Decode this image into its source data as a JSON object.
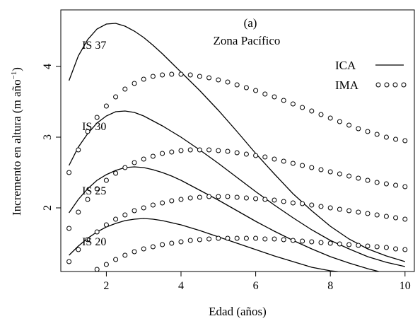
{
  "chart_data": {
    "type": "line",
    "panel_label": "(a)",
    "title": "Zona Pacífico",
    "xlabel": "Edad (años)",
    "ylabel": "Incremento en altura (m año",
    "ylabel_sup": "−1",
    "ylabel_close": ")",
    "xlim": [
      0.78,
      10.25
    ],
    "ylim": [
      1.1,
      4.8
    ],
    "x_ticks": [
      2,
      4,
      6,
      8,
      10
    ],
    "y_ticks": [
      2,
      3,
      4
    ],
    "grid": false,
    "legend_position": "top-right",
    "legend": [
      {
        "label": "ICA",
        "style": "solid"
      },
      {
        "label": "IMA",
        "style": "circles"
      }
    ],
    "series": [
      {
        "name": "IS 37",
        "group": "ICA",
        "style": "solid",
        "x": [
          1.0,
          1.25,
          1.5,
          1.75,
          2.0,
          2.25,
          2.5,
          2.75,
          3.0,
          3.25,
          3.5,
          3.75,
          4.0,
          4.5,
          5.0,
          5.5,
          6.0,
          6.5,
          7.0,
          7.5,
          8.0,
          8.5,
          9.0,
          9.5,
          10.0
        ],
        "y": [
          3.8,
          4.15,
          4.38,
          4.53,
          4.6,
          4.61,
          4.57,
          4.5,
          4.41,
          4.3,
          4.18,
          4.05,
          3.92,
          3.66,
          3.38,
          3.08,
          2.77,
          2.48,
          2.2,
          1.96,
          1.74,
          1.56,
          1.42,
          1.32,
          1.24
        ]
      },
      {
        "name": "IS 30",
        "group": "ICA",
        "style": "solid",
        "x": [
          1.0,
          1.25,
          1.5,
          1.75,
          2.0,
          2.25,
          2.5,
          2.75,
          3.0,
          3.25,
          3.5,
          3.75,
          4.0,
          4.5,
          5.0,
          5.5,
          6.0,
          6.5,
          7.0,
          7.5,
          8.0,
          8.5,
          9.0,
          9.5,
          10.0
        ],
        "y": [
          2.6,
          2.86,
          3.05,
          3.2,
          3.3,
          3.36,
          3.37,
          3.35,
          3.3,
          3.23,
          3.16,
          3.08,
          3.0,
          2.82,
          2.63,
          2.43,
          2.23,
          2.04,
          1.86,
          1.69,
          1.54,
          1.42,
          1.31,
          1.23,
          1.17
        ]
      },
      {
        "name": "IS 25",
        "group": "ICA",
        "style": "solid",
        "x": [
          1.0,
          1.25,
          1.5,
          1.75,
          2.0,
          2.25,
          2.5,
          2.75,
          3.0,
          3.25,
          3.5,
          3.75,
          4.0,
          4.5,
          5.0,
          5.5,
          6.0,
          6.5,
          7.0,
          7.5,
          8.0,
          8.5,
          9.0,
          9.3
        ],
        "y": [
          1.93,
          2.12,
          2.27,
          2.39,
          2.47,
          2.53,
          2.57,
          2.58,
          2.57,
          2.54,
          2.5,
          2.45,
          2.39,
          2.25,
          2.11,
          1.96,
          1.81,
          1.67,
          1.54,
          1.42,
          1.31,
          1.22,
          1.14,
          1.1
        ]
      },
      {
        "name": "IS 20",
        "group": "ICA",
        "style": "solid",
        "x": [
          1.0,
          1.25,
          1.5,
          1.75,
          2.0,
          2.25,
          2.5,
          2.75,
          3.0,
          3.25,
          3.5,
          3.75,
          4.0,
          4.5,
          5.0,
          5.5,
          6.0,
          6.5,
          7.0,
          7.5,
          8.0,
          8.2
        ],
        "y": [
          1.33,
          1.46,
          1.57,
          1.66,
          1.73,
          1.78,
          1.82,
          1.84,
          1.85,
          1.84,
          1.82,
          1.79,
          1.76,
          1.68,
          1.59,
          1.5,
          1.41,
          1.32,
          1.24,
          1.16,
          1.11,
          1.1
        ]
      },
      {
        "name": "",
        "group": "IMA",
        "style": "circles",
        "x": [
          1.0,
          1.25,
          1.5,
          1.75,
          2.0,
          2.25,
          2.5,
          2.75,
          3.0,
          3.25,
          3.5,
          3.75,
          4.0,
          4.25,
          4.5,
          4.75,
          5.0,
          5.25,
          5.5,
          5.75,
          6.0,
          6.25,
          6.5,
          6.75,
          7.0,
          7.25,
          7.5,
          7.75,
          8.0,
          8.25,
          8.5,
          8.75,
          9.0,
          9.25,
          9.5,
          9.75,
          10.0
        ],
        "y": [
          2.5,
          2.82,
          3.08,
          3.28,
          3.44,
          3.57,
          3.68,
          3.76,
          3.82,
          3.86,
          3.88,
          3.89,
          3.89,
          3.88,
          3.86,
          3.84,
          3.81,
          3.78,
          3.74,
          3.7,
          3.66,
          3.61,
          3.57,
          3.52,
          3.47,
          3.42,
          3.37,
          3.32,
          3.27,
          3.22,
          3.17,
          3.12,
          3.08,
          3.04,
          3.0,
          2.97,
          2.95
        ]
      },
      {
        "name": "",
        "group": "IMA",
        "style": "circles",
        "x": [
          1.0,
          1.25,
          1.5,
          1.75,
          2.0,
          2.25,
          2.5,
          2.75,
          3.0,
          3.25,
          3.5,
          3.75,
          4.0,
          4.25,
          4.5,
          4.75,
          5.0,
          5.25,
          5.5,
          5.75,
          6.0,
          6.25,
          6.5,
          6.75,
          7.0,
          7.25,
          7.5,
          7.75,
          8.0,
          8.25,
          8.5,
          8.75,
          9.0,
          9.25,
          9.5,
          9.75,
          10.0
        ],
        "y": [
          1.71,
          1.94,
          2.12,
          2.27,
          2.39,
          2.49,
          2.57,
          2.64,
          2.69,
          2.73,
          2.77,
          2.79,
          2.81,
          2.82,
          2.82,
          2.82,
          2.81,
          2.8,
          2.78,
          2.76,
          2.74,
          2.72,
          2.69,
          2.66,
          2.63,
          2.6,
          2.57,
          2.54,
          2.51,
          2.48,
          2.45,
          2.42,
          2.39,
          2.36,
          2.34,
          2.32,
          2.3
        ]
      },
      {
        "name": "",
        "group": "IMA",
        "style": "circles",
        "x": [
          1.0,
          1.25,
          1.5,
          1.75,
          2.0,
          2.25,
          2.5,
          2.75,
          3.0,
          3.25,
          3.5,
          3.75,
          4.0,
          4.25,
          4.5,
          4.75,
          5.0,
          5.25,
          5.5,
          5.75,
          6.0,
          6.25,
          6.5,
          6.75,
          7.0,
          7.25,
          7.5,
          7.75,
          8.0,
          8.25,
          8.5,
          8.75,
          9.0,
          9.25,
          9.5,
          9.75,
          10.0
        ],
        "y": [
          1.24,
          1.41,
          1.55,
          1.66,
          1.76,
          1.84,
          1.9,
          1.96,
          2.0,
          2.04,
          2.07,
          2.1,
          2.12,
          2.14,
          2.15,
          2.16,
          2.16,
          2.16,
          2.15,
          2.14,
          2.13,
          2.12,
          2.11,
          2.09,
          2.07,
          2.06,
          2.04,
          2.02,
          2.0,
          1.98,
          1.96,
          1.94,
          1.92,
          1.9,
          1.88,
          1.86,
          1.84
        ]
      },
      {
        "name": "",
        "group": "IMA",
        "style": "circles",
        "x": [
          1.75,
          2.0,
          2.25,
          2.5,
          2.75,
          3.0,
          3.25,
          3.5,
          3.75,
          4.0,
          4.25,
          4.5,
          4.75,
          5.0,
          5.25,
          5.5,
          5.75,
          6.0,
          6.25,
          6.5,
          6.75,
          7.0,
          7.25,
          7.5,
          7.75,
          8.0,
          8.25,
          8.5,
          8.75,
          9.0,
          9.25,
          9.5,
          9.75,
          10.0
        ],
        "y": [
          1.13,
          1.2,
          1.27,
          1.33,
          1.38,
          1.42,
          1.45,
          1.48,
          1.5,
          1.52,
          1.54,
          1.55,
          1.56,
          1.57,
          1.57,
          1.57,
          1.57,
          1.57,
          1.56,
          1.56,
          1.55,
          1.54,
          1.53,
          1.52,
          1.51,
          1.5,
          1.49,
          1.48,
          1.47,
          1.46,
          1.45,
          1.44,
          1.42,
          1.41
        ]
      }
    ],
    "annotations": [
      {
        "text": "IS 37",
        "x": 1.35,
        "y": 4.25
      },
      {
        "text": "IS 30",
        "x": 1.35,
        "y": 3.1
      },
      {
        "text": "IS 25",
        "x": 1.35,
        "y": 2.19
      },
      {
        "text": "IS 20",
        "x": 1.35,
        "y": 1.47
      }
    ]
  }
}
